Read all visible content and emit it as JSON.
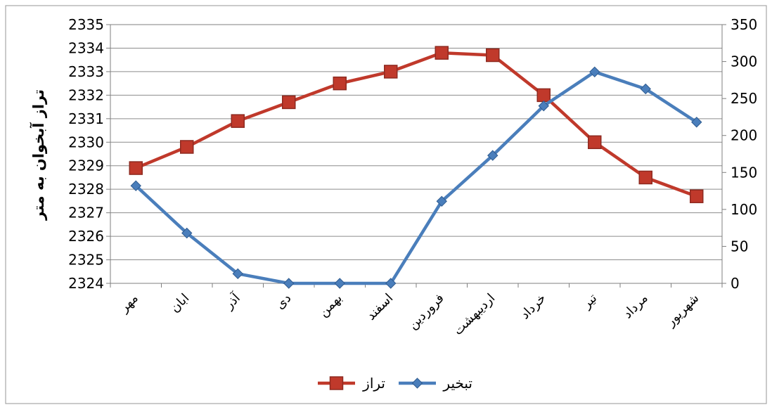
{
  "chart_data": {
    "type": "line",
    "categories": [
      "مهر",
      "ابان",
      "آذر",
      "دی",
      "بهمن",
      "اسفند",
      "فروردین",
      "اردیبهشت",
      "خرداد",
      "تیر",
      "مرداد",
      "شهریور"
    ],
    "ylabel": "تراز آبخوان به متر",
    "y_left_lim": [
      2324,
      2335
    ],
    "y_left_ticks": [
      2324,
      2325,
      2326,
      2327,
      2328,
      2329,
      2330,
      2331,
      2332,
      2333,
      2334,
      2335
    ],
    "y_right_lim": [
      0,
      350
    ],
    "y_right_ticks": [
      0,
      50,
      100,
      150,
      200,
      250,
      300,
      350
    ],
    "grid": true,
    "legend_position": "bottom",
    "series": [
      {
        "name": "تراز",
        "axis": "left",
        "color": "#c0392b",
        "marker": "square",
        "values": [
          2328.9,
          2329.8,
          2330.9,
          2331.7,
          2332.5,
          2333.0,
          2333.8,
          2333.7,
          2332.0,
          2330.0,
          2328.5,
          2327.7
        ]
      },
      {
        "name": "تبخیر",
        "axis": "right",
        "color": "#4a7ebb",
        "marker": "diamond",
        "values": [
          132,
          68,
          13,
          0,
          0,
          0,
          111,
          173,
          240,
          286,
          263,
          218
        ]
      }
    ]
  }
}
